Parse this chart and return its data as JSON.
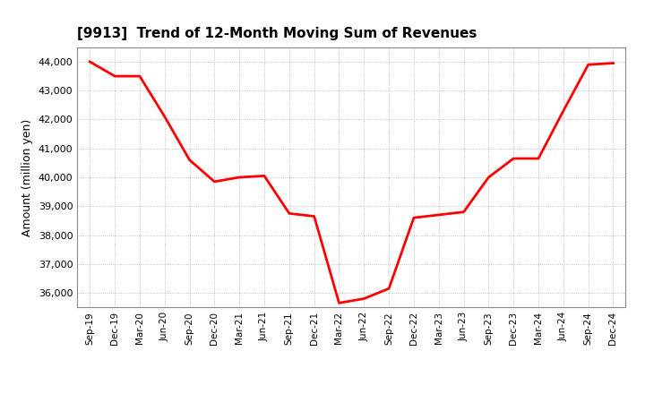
{
  "title": "[9913]  Trend of 12-Month Moving Sum of Revenues",
  "ylabel": "Amount (million yen)",
  "line_color": "#ff0000",
  "line_width": 2.0,
  "background_color": "#ffffff",
  "grid_color": "#999999",
  "ylim": [
    35500,
    44500
  ],
  "yticks": [
    36000,
    37000,
    38000,
    39000,
    40000,
    41000,
    42000,
    43000,
    44000
  ],
  "labels": [
    "Sep-19",
    "Dec-19",
    "Mar-20",
    "Jun-20",
    "Sep-20",
    "Dec-20",
    "Mar-21",
    "Jun-21",
    "Sep-21",
    "Dec-21",
    "Mar-22",
    "Jun-22",
    "Sep-22",
    "Dec-22",
    "Mar-23",
    "Jun-23",
    "Sep-23",
    "Dec-23",
    "Mar-24",
    "Jun-24",
    "Sep-24",
    "Dec-24"
  ],
  "values": [
    44000,
    43500,
    43500,
    42100,
    40600,
    39850,
    40000,
    40050,
    38750,
    38650,
    35650,
    35800,
    36150,
    38600,
    38700,
    38800,
    40000,
    40650,
    40650,
    42300,
    43900,
    43950
  ]
}
